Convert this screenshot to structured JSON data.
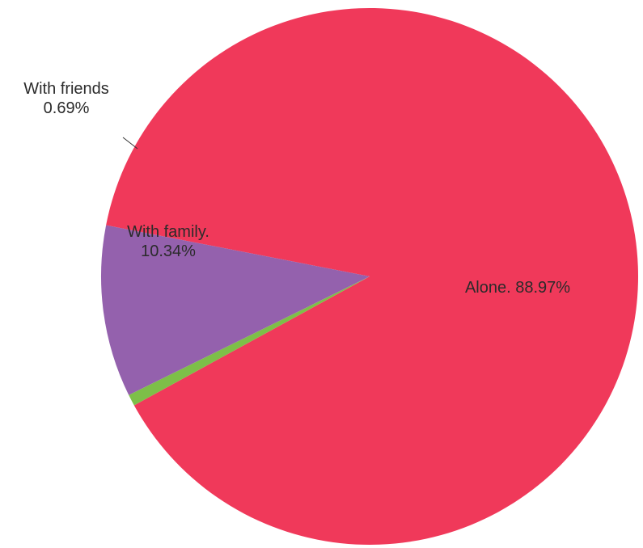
{
  "chart_data": {
    "type": "pie",
    "title": "",
    "slices": [
      {
        "category": "Alone",
        "value": 88.97,
        "label_lines": [
          "Alone. 88.97%"
        ],
        "color": "#f0395a"
      },
      {
        "category": "With friends",
        "value": 0.69,
        "label_lines": [
          "With friends",
          "0.69%"
        ],
        "color": "#7dbf48"
      },
      {
        "category": "With family",
        "value": 10.34,
        "label_lines": [
          "With family.",
          "10.34%"
        ],
        "color": "#9461ad"
      }
    ],
    "legend": "none",
    "label_placement": "on-slice with leader line for small slice"
  }
}
